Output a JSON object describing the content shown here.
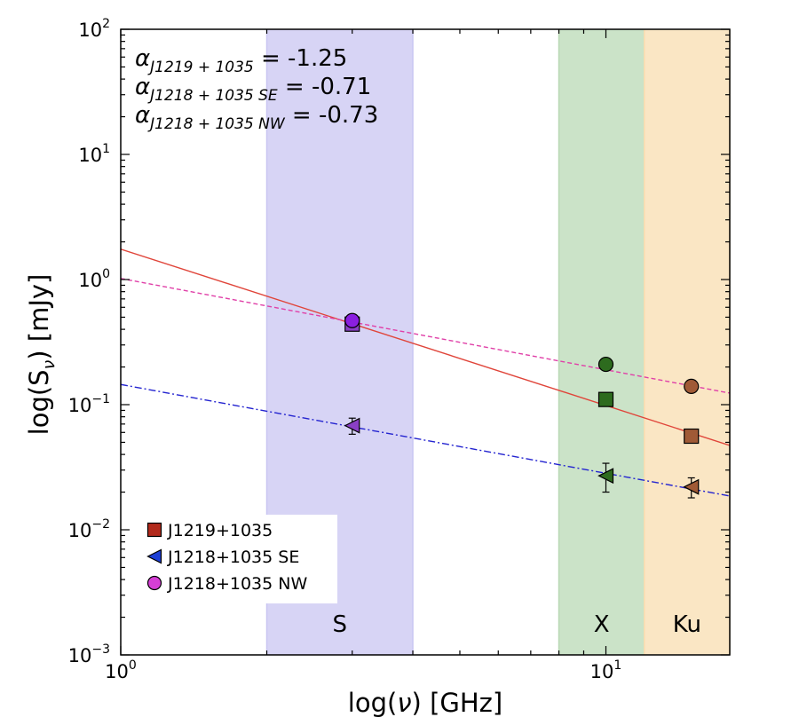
{
  "chart_data": {
    "type": "scatter",
    "xscale": "log",
    "yscale": "log",
    "xlim": [
      1,
      18
    ],
    "ylim": [
      0.001,
      100
    ],
    "xlabel_pre": "log(",
    "xlabel_sym": "ν",
    "xlabel_post": ") [GHz]",
    "ylabel_pre": "log(S",
    "ylabel_sub": "ν",
    "ylabel_post": ") [mJy]",
    "x_ticks": [
      {
        "value": 1,
        "base": "10",
        "exp": "0"
      },
      {
        "value": 10,
        "base": "10",
        "exp": "1"
      }
    ],
    "y_ticks": [
      {
        "value": 0.001,
        "base": "10",
        "exp": "−3"
      },
      {
        "value": 0.01,
        "base": "10",
        "exp": "−2"
      },
      {
        "value": 0.1,
        "base": "10",
        "exp": "−1"
      },
      {
        "value": 1,
        "base": "10",
        "exp": "0"
      },
      {
        "value": 10,
        "base": "10",
        "exp": "1"
      },
      {
        "value": 100,
        "base": "10",
        "exp": "2"
      }
    ],
    "bands": [
      {
        "name": "S",
        "x_range": [
          2,
          4
        ],
        "color": "#c9c6f2"
      },
      {
        "name": "X",
        "x_range": [
          8,
          12
        ],
        "color": "#b9d9b5"
      },
      {
        "name": "Ku",
        "x_range": [
          12,
          18
        ],
        "color": "#f8ddb0"
      }
    ],
    "annotations": [
      {
        "sym": "α",
        "sub": "J1219 + 1035",
        "text": " = -1.25"
      },
      {
        "sym": "α",
        "sub": "J1218 + 1035 SE",
        "text": " = -0.71"
      },
      {
        "sym": "α",
        "sub": "J1218 + 1035 NW",
        "text": " = -0.73"
      }
    ],
    "series": [
      {
        "name": "J1219+1035",
        "marker": "square",
        "legend_color": "#b22a1c",
        "colors": [
          "#8a3fc6",
          "#2d6b1e",
          "#a05a36"
        ],
        "x": [
          3,
          10,
          15
        ],
        "y": [
          0.44,
          0.11,
          0.056
        ],
        "fit": {
          "amp": 1.75,
          "slope": -1.25,
          "color": "#e0453a",
          "dash": "none"
        }
      },
      {
        "name": "J1218+1035 SE",
        "marker": "triangle-left",
        "legend_color": "#1d3fd6",
        "colors": [
          "#8a3fc6",
          "#2d6b1e",
          "#a05a36"
        ],
        "x": [
          3,
          10,
          15
        ],
        "y": [
          0.068,
          0.027,
          0.022
        ],
        "yerr": [
          0.01,
          0.007,
          0.004
        ],
        "fit": {
          "amp": 0.145,
          "slope": -0.71,
          "color": "#2424d0",
          "dash": "8,3,2,3"
        }
      },
      {
        "name": "J1218+1035 NW",
        "marker": "circle",
        "legend_color": "#d63fd6",
        "colors": [
          "#8a1fe0",
          "#2d6b1e",
          "#a05a36"
        ],
        "x": [
          3,
          10,
          15
        ],
        "y": [
          0.47,
          0.21,
          0.14
        ],
        "fit": {
          "amp": 1.02,
          "slope": -0.73,
          "color": "#e040a8",
          "dash": "5,3"
        }
      }
    ]
  }
}
